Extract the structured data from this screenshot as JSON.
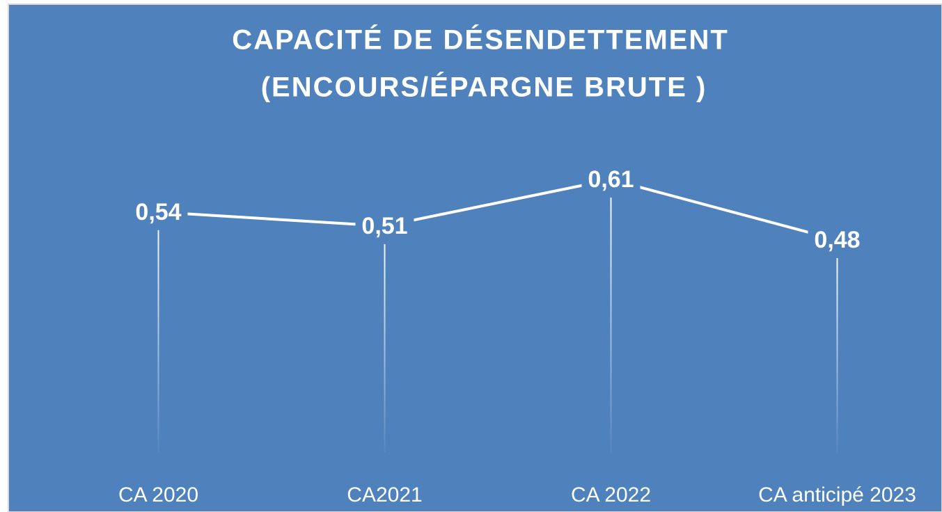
{
  "chart_data": {
    "type": "line",
    "title": [
      "CAPACITÉ DE DÉSENDETTEMENT",
      "(ENCOURS/ÉPARGNE BRUTE )"
    ],
    "categories": [
      "CA 2020",
      "CA2021",
      "CA  2022",
      "CA anticipé 2023"
    ],
    "series": [
      {
        "name": null,
        "color": "#ffffff",
        "values": [
          0.54,
          0.51,
          0.61,
          0.48
        ],
        "value_labels": [
          "0,54",
          "0,51",
          "0,61",
          "0,48"
        ]
      }
    ],
    "background": "#4f81bd",
    "drop_lines": true
  }
}
